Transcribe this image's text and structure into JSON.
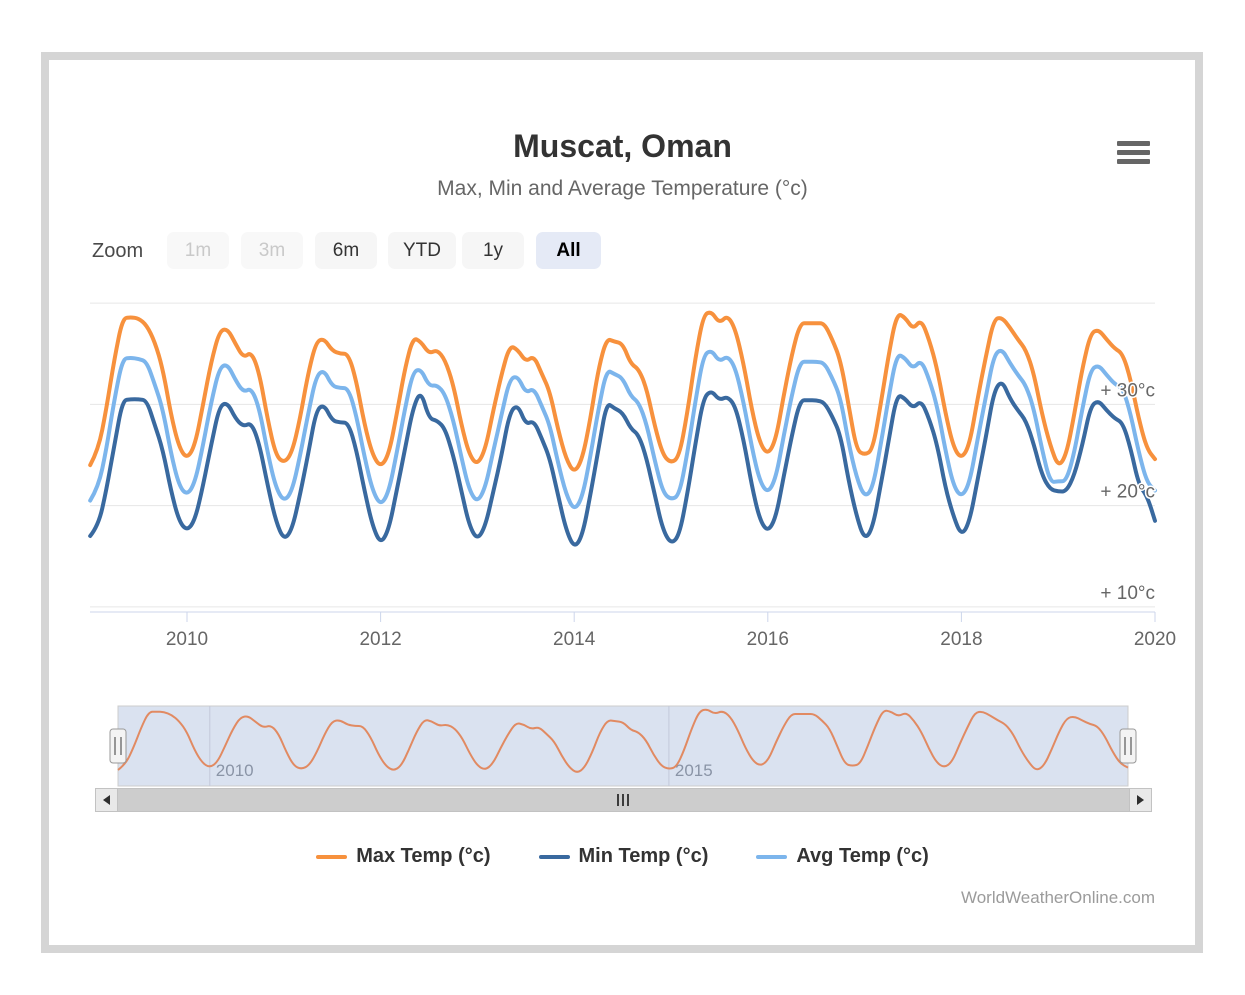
{
  "header": {
    "title": "Muscat, Oman",
    "subtitle": "Max, Min and Average Temperature (°c)"
  },
  "range_selector": {
    "label": "Zoom",
    "buttons": [
      {
        "label": "1m",
        "state": "disabled"
      },
      {
        "label": "3m",
        "state": "disabled"
      },
      {
        "label": "6m",
        "state": "normal"
      },
      {
        "label": "YTD",
        "state": "normal"
      },
      {
        "label": "1y",
        "state": "normal"
      },
      {
        "label": "All",
        "state": "selected"
      }
    ]
  },
  "chart_data": {
    "type": "line",
    "title": "Muscat, Oman",
    "subtitle": "Max, Min and Average Temperature (°c)",
    "x_monthly_start": "2009-01",
    "x_monthly_end": "2020-01",
    "x_ticks": [
      {
        "year": 2010,
        "label": "2010"
      },
      {
        "year": 2012,
        "label": "2012"
      },
      {
        "year": 2014,
        "label": "2014"
      },
      {
        "year": 2016,
        "label": "2016"
      },
      {
        "year": 2018,
        "label": "2018"
      },
      {
        "year": 2020,
        "label": "2020"
      }
    ],
    "y_axis_labels": [
      {
        "value": 30,
        "text": "+ 30°c"
      },
      {
        "value": 20,
        "text": "+ 20°c"
      },
      {
        "value": 10,
        "text": "+ 10°c"
      }
    ],
    "y_gridline_values": [
      40,
      30,
      20,
      10
    ],
    "ylim": [
      9.5,
      40.5
    ],
    "grid": true,
    "legend_position": "bottom-center",
    "series": [
      {
        "name": "Max Temp (°c)",
        "color": "#f7913d",
        "values": [
          24.0,
          25.5,
          29.5,
          34.5,
          38.5,
          38.6,
          38.5,
          37.8,
          36.2,
          33.5,
          29.0,
          25.8,
          24.6,
          26.0,
          30.0,
          34.2,
          37.2,
          37.5,
          36.0,
          34.6,
          35.2,
          33.0,
          28.5,
          25.0,
          24.2,
          25.2,
          28.5,
          33.0,
          36.2,
          36.5,
          35.3,
          35.0,
          35.0,
          32.3,
          28.0,
          25.0,
          23.8,
          25.0,
          29.0,
          33.5,
          36.6,
          36.2,
          35.0,
          35.4,
          34.4,
          32.0,
          28.0,
          25.0,
          24.0,
          25.6,
          29.5,
          33.0,
          35.8,
          35.4,
          34.2,
          34.8,
          33.0,
          31.2,
          27.5,
          24.6,
          23.2,
          24.6,
          28.5,
          33.5,
          36.5,
          36.2,
          36.0,
          34.0,
          33.5,
          31.5,
          27.8,
          25.0,
          24.2,
          24.8,
          29.0,
          34.5,
          38.8,
          39.2,
          38.0,
          38.8,
          37.4,
          34.0,
          29.5,
          26.2,
          25.0,
          26.5,
          31.0,
          35.0,
          38.0,
          38.0,
          38.0,
          38.0,
          36.4,
          34.4,
          30.0,
          25.5,
          25.0,
          25.5,
          30.0,
          35.0,
          39.0,
          38.6,
          37.4,
          38.4,
          36.4,
          33.5,
          29.2,
          25.8,
          24.6,
          26.0,
          30.5,
          34.6,
          38.4,
          38.6,
          37.6,
          36.4,
          35.4,
          33.0,
          29.0,
          26.0,
          23.8,
          25.0,
          29.0,
          33.6,
          37.0,
          37.4,
          36.4,
          35.5,
          35.0,
          32.4,
          28.5,
          25.6,
          24.6
        ]
      },
      {
        "name": "Min Temp (°c)",
        "color": "#39699f",
        "values": [
          17.0,
          18.0,
          21.5,
          26.0,
          30.4,
          30.5,
          30.5,
          30.4,
          28.0,
          25.5,
          21.5,
          18.5,
          17.5,
          18.6,
          22.0,
          26.0,
          29.8,
          30.2,
          28.6,
          27.8,
          28.2,
          26.0,
          22.0,
          18.5,
          16.6,
          17.6,
          21.0,
          25.0,
          29.4,
          30.0,
          28.4,
          28.2,
          28.2,
          25.5,
          21.5,
          18.0,
          16.2,
          17.6,
          21.5,
          25.5,
          29.6,
          31.4,
          28.6,
          28.4,
          27.6,
          25.0,
          21.5,
          18.0,
          16.6,
          18.0,
          21.5,
          25.0,
          29.2,
          30.0,
          28.0,
          28.4,
          26.6,
          24.6,
          21.0,
          17.6,
          15.8,
          17.0,
          21.0,
          25.5,
          30.2,
          29.6,
          29.2,
          27.6,
          27.0,
          24.6,
          21.0,
          17.6,
          16.2,
          17.0,
          21.0,
          26.0,
          30.6,
          31.4,
          30.4,
          30.8,
          29.8,
          26.5,
          22.0,
          18.6,
          17.4,
          18.8,
          23.0,
          27.0,
          30.4,
          30.4,
          30.4,
          30.2,
          28.8,
          27.0,
          22.5,
          19.0,
          16.6,
          17.8,
          22.0,
          26.5,
          31.0,
          30.6,
          29.6,
          30.4,
          28.6,
          26.0,
          21.8,
          19.0,
          17.0,
          18.4,
          22.5,
          26.6,
          31.2,
          32.4,
          30.6,
          29.4,
          28.4,
          26.0,
          23.0,
          21.6,
          21.4,
          21.4,
          23.0,
          26.0,
          29.8,
          30.4,
          29.4,
          28.6,
          28.2,
          25.6,
          22.0,
          21.0,
          18.5
        ]
      },
      {
        "name": "Avg Temp (°c)",
        "color": "#7cb5ec",
        "values": [
          20.5,
          21.8,
          25.5,
          30.5,
          34.5,
          34.6,
          34.5,
          34.2,
          32.0,
          29.5,
          25.2,
          22.0,
          21.0,
          22.3,
          26.0,
          30.2,
          33.6,
          34.0,
          32.4,
          31.2,
          31.6,
          29.5,
          25.2,
          21.8,
          20.4,
          21.4,
          24.8,
          29.0,
          32.8,
          33.4,
          31.8,
          31.6,
          31.6,
          28.9,
          24.8,
          21.5,
          20.0,
          21.3,
          25.2,
          29.5,
          33.2,
          33.5,
          31.8,
          31.9,
          31.0,
          28.5,
          24.8,
          21.5,
          20.3,
          21.8,
          25.5,
          29.0,
          32.5,
          32.8,
          31.1,
          31.6,
          29.8,
          27.9,
          24.2,
          21.1,
          19.5,
          20.8,
          24.8,
          29.5,
          33.4,
          33.0,
          32.6,
          30.8,
          30.2,
          28.0,
          24.4,
          21.3,
          20.6,
          21.0,
          25.0,
          30.2,
          34.8,
          35.4,
          34.2,
          34.8,
          33.6,
          30.2,
          25.8,
          22.4,
          21.2,
          22.7,
          27.0,
          31.0,
          34.2,
          34.2,
          34.2,
          34.1,
          32.6,
          30.7,
          26.2,
          22.8,
          20.8,
          21.7,
          26.0,
          30.8,
          35.0,
          34.6,
          33.5,
          34.4,
          32.5,
          29.8,
          25.5,
          22.0,
          20.8,
          22.2,
          26.5,
          30.6,
          34.8,
          35.5,
          34.1,
          32.9,
          31.9,
          29.5,
          25.5,
          22.3,
          22.4,
          22.4,
          25.2,
          29.6,
          33.4,
          33.9,
          32.9,
          32.0,
          31.6,
          29.0,
          25.2,
          22.3,
          21.5
        ]
      }
    ]
  },
  "navigator": {
    "labels": [
      {
        "year": 2010,
        "text": "2010"
      },
      {
        "year": 2015,
        "text": "2015"
      }
    ],
    "mask_color": "rgba(102,133,194,0.24)",
    "line_color": "#e18a62"
  },
  "footer": {
    "credits": "WorldWeatherOnline.com"
  }
}
